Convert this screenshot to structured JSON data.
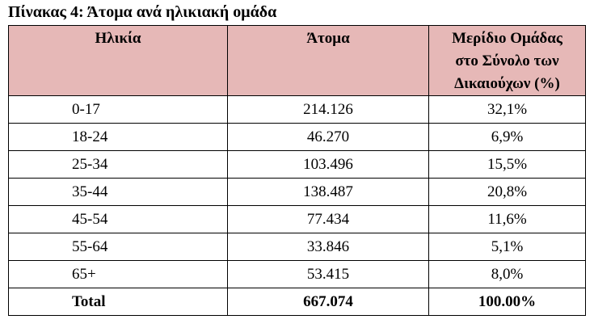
{
  "title": "Πίνακας 4: Άτομα ανά ηλικιακή ομάδα",
  "table": {
    "headers": [
      "Ηλικία",
      "Άτομα",
      "Μερίδιο Ομάδας στο Σύνολο των Δικαιούχων (%)"
    ],
    "rows": [
      [
        "0-17",
        "214.126",
        "32,1%"
      ],
      [
        "18-24",
        "46.270",
        "6,9%"
      ],
      [
        "25-34",
        "103.496",
        "15,5%"
      ],
      [
        "35-44",
        "138.487",
        "20,8%"
      ],
      [
        "45-54",
        "77.434",
        "11,6%"
      ],
      [
        "55-64",
        "33.846",
        "5,1%"
      ],
      [
        "65+",
        "53.415",
        "8,0%"
      ]
    ],
    "total": [
      "Total",
      "667.074",
      "100.00%"
    ]
  }
}
